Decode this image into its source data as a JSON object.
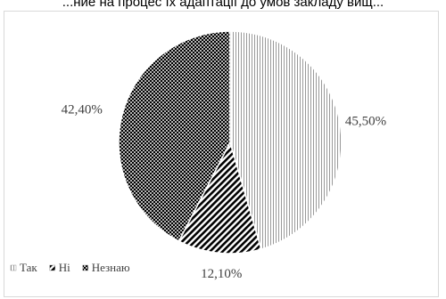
{
  "page": {
    "title": "...ние на процес їх адаптації до умов закладу вищ..."
  },
  "chart_data": {
    "type": "pie",
    "title": "",
    "categories": [
      "Так",
      "Ні",
      "Незнаю"
    ],
    "values": [
      45.5,
      12.1,
      42.4
    ],
    "value_labels": [
      "45,50%",
      "12,10%",
      "42,40%"
    ],
    "unit": "%",
    "start_angle_deg": 0,
    "direction": "clockwise",
    "fills": [
      "vertical-stripes",
      "diagonal-stripes",
      "checker-dots"
    ],
    "colors": {
      "stripe": "#9a9a9a",
      "dark": "#000000",
      "background": "#ffffff",
      "edge": "#ffffff"
    },
    "legend_position": "bottom-left"
  }
}
